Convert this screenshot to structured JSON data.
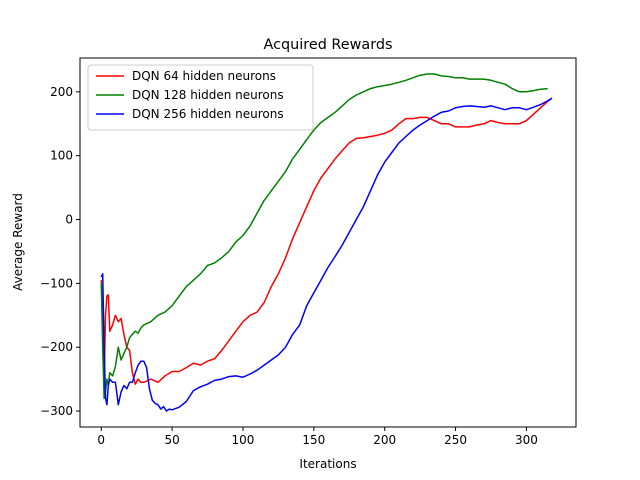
{
  "chart_data": {
    "type": "line",
    "title": "Acquired Rewards",
    "xlabel": "Iterations",
    "ylabel": "Average Reward",
    "xlim": [
      -15,
      335
    ],
    "ylim": [
      -325,
      253
    ],
    "xticks": [
      0,
      50,
      100,
      150,
      200,
      250,
      300
    ],
    "yticks": [
      -300,
      -200,
      -100,
      0,
      100,
      200
    ],
    "grid": false,
    "legend": "upper-left",
    "series": [
      {
        "name": "DQN 64 hidden neurons",
        "color": "#ff0000",
        "points": [
          [
            0,
            -95
          ],
          [
            1,
            -170
          ],
          [
            2,
            -260
          ],
          [
            3,
            -150
          ],
          [
            4,
            -120
          ],
          [
            5,
            -118
          ],
          [
            6,
            -175
          ],
          [
            8,
            -165
          ],
          [
            10,
            -150
          ],
          [
            12,
            -160
          ],
          [
            14,
            -155
          ],
          [
            16,
            -180
          ],
          [
            18,
            -200
          ],
          [
            20,
            -205
          ],
          [
            22,
            -240
          ],
          [
            24,
            -258
          ],
          [
            26,
            -250
          ],
          [
            28,
            -255
          ],
          [
            30,
            -255
          ],
          [
            35,
            -250
          ],
          [
            40,
            -255
          ],
          [
            45,
            -245
          ],
          [
            50,
            -238
          ],
          [
            55,
            -238
          ],
          [
            60,
            -232
          ],
          [
            65,
            -225
          ],
          [
            70,
            -228
          ],
          [
            75,
            -222
          ],
          [
            80,
            -218
          ],
          [
            85,
            -205
          ],
          [
            90,
            -190
          ],
          [
            95,
            -175
          ],
          [
            100,
            -160
          ],
          [
            105,
            -150
          ],
          [
            110,
            -145
          ],
          [
            115,
            -130
          ],
          [
            120,
            -105
          ],
          [
            125,
            -85
          ],
          [
            130,
            -60
          ],
          [
            135,
            -30
          ],
          [
            140,
            -5
          ],
          [
            145,
            20
          ],
          [
            150,
            45
          ],
          [
            155,
            65
          ],
          [
            160,
            80
          ],
          [
            165,
            95
          ],
          [
            170,
            108
          ],
          [
            175,
            120
          ],
          [
            180,
            127
          ],
          [
            185,
            128
          ],
          [
            190,
            130
          ],
          [
            195,
            132
          ],
          [
            200,
            135
          ],
          [
            205,
            140
          ],
          [
            210,
            150
          ],
          [
            215,
            158
          ],
          [
            220,
            158
          ],
          [
            225,
            160
          ],
          [
            230,
            160
          ],
          [
            235,
            155
          ],
          [
            240,
            150
          ],
          [
            245,
            150
          ],
          [
            250,
            145
          ],
          [
            255,
            145
          ],
          [
            260,
            145
          ],
          [
            265,
            148
          ],
          [
            270,
            150
          ],
          [
            275,
            155
          ],
          [
            280,
            152
          ],
          [
            285,
            150
          ],
          [
            290,
            150
          ],
          [
            295,
            150
          ],
          [
            300,
            155
          ],
          [
            305,
            165
          ],
          [
            310,
            175
          ],
          [
            315,
            185
          ],
          [
            318,
            190
          ]
        ]
      },
      {
        "name": "DQN 128 hidden neurons",
        "color": "#008000",
        "points": [
          [
            0,
            -100
          ],
          [
            1,
            -200
          ],
          [
            2,
            -280
          ],
          [
            3,
            -270
          ],
          [
            4,
            -250
          ],
          [
            5,
            -260
          ],
          [
            6,
            -240
          ],
          [
            8,
            -245
          ],
          [
            10,
            -230
          ],
          [
            12,
            -200
          ],
          [
            14,
            -220
          ],
          [
            16,
            -210
          ],
          [
            18,
            -200
          ],
          [
            20,
            -185
          ],
          [
            22,
            -180
          ],
          [
            24,
            -175
          ],
          [
            26,
            -178
          ],
          [
            28,
            -170
          ],
          [
            30,
            -165
          ],
          [
            35,
            -160
          ],
          [
            40,
            -150
          ],
          [
            45,
            -145
          ],
          [
            50,
            -135
          ],
          [
            55,
            -120
          ],
          [
            60,
            -105
          ],
          [
            65,
            -95
          ],
          [
            70,
            -85
          ],
          [
            75,
            -72
          ],
          [
            80,
            -68
          ],
          [
            85,
            -60
          ],
          [
            90,
            -50
          ],
          [
            95,
            -35
          ],
          [
            100,
            -25
          ],
          [
            105,
            -10
          ],
          [
            110,
            10
          ],
          [
            115,
            30
          ],
          [
            120,
            45
          ],
          [
            125,
            60
          ],
          [
            130,
            75
          ],
          [
            135,
            95
          ],
          [
            140,
            110
          ],
          [
            145,
            125
          ],
          [
            150,
            140
          ],
          [
            155,
            152
          ],
          [
            160,
            160
          ],
          [
            165,
            168
          ],
          [
            170,
            178
          ],
          [
            175,
            188
          ],
          [
            180,
            195
          ],
          [
            185,
            200
          ],
          [
            190,
            205
          ],
          [
            195,
            208
          ],
          [
            200,
            210
          ],
          [
            205,
            212
          ],
          [
            210,
            215
          ],
          [
            215,
            218
          ],
          [
            220,
            222
          ],
          [
            225,
            226
          ],
          [
            230,
            228
          ],
          [
            235,
            228
          ],
          [
            240,
            225
          ],
          [
            245,
            224
          ],
          [
            250,
            222
          ],
          [
            255,
            222
          ],
          [
            260,
            220
          ],
          [
            265,
            220
          ],
          [
            270,
            220
          ],
          [
            275,
            218
          ],
          [
            280,
            215
          ],
          [
            285,
            212
          ],
          [
            290,
            205
          ],
          [
            295,
            200
          ],
          [
            300,
            200
          ],
          [
            305,
            202
          ],
          [
            310,
            204
          ],
          [
            315,
            205
          ]
        ]
      },
      {
        "name": "DQN 256 hidden neurons",
        "color": "#0000ff",
        "points": [
          [
            0,
            -90
          ],
          [
            1,
            -85
          ],
          [
            2,
            -200
          ],
          [
            3,
            -280
          ],
          [
            4,
            -290
          ],
          [
            5,
            -260
          ],
          [
            6,
            -250
          ],
          [
            8,
            -255
          ],
          [
            10,
            -255
          ],
          [
            12,
            -290
          ],
          [
            14,
            -270
          ],
          [
            16,
            -260
          ],
          [
            18,
            -265
          ],
          [
            20,
            -255
          ],
          [
            22,
            -255
          ],
          [
            24,
            -240
          ],
          [
            26,
            -228
          ],
          [
            28,
            -222
          ],
          [
            30,
            -222
          ],
          [
            32,
            -232
          ],
          [
            34,
            -265
          ],
          [
            36,
            -283
          ],
          [
            38,
            -288
          ],
          [
            40,
            -290
          ],
          [
            42,
            -297
          ],
          [
            44,
            -293
          ],
          [
            46,
            -300
          ],
          [
            48,
            -297
          ],
          [
            50,
            -298
          ],
          [
            55,
            -294
          ],
          [
            60,
            -285
          ],
          [
            65,
            -268
          ],
          [
            70,
            -262
          ],
          [
            75,
            -258
          ],
          [
            80,
            -252
          ],
          [
            85,
            -250
          ],
          [
            90,
            -246
          ],
          [
            95,
            -245
          ],
          [
            100,
            -247
          ],
          [
            105,
            -242
          ],
          [
            110,
            -236
          ],
          [
            115,
            -228
          ],
          [
            120,
            -220
          ],
          [
            125,
            -212
          ],
          [
            130,
            -200
          ],
          [
            135,
            -180
          ],
          [
            140,
            -165
          ],
          [
            145,
            -135
          ],
          [
            150,
            -115
          ],
          [
            155,
            -95
          ],
          [
            160,
            -75
          ],
          [
            165,
            -58
          ],
          [
            170,
            -40
          ],
          [
            175,
            -20
          ],
          [
            180,
            0
          ],
          [
            185,
            20
          ],
          [
            190,
            45
          ],
          [
            195,
            70
          ],
          [
            200,
            90
          ],
          [
            205,
            105
          ],
          [
            210,
            120
          ],
          [
            215,
            130
          ],
          [
            220,
            140
          ],
          [
            225,
            148
          ],
          [
            230,
            155
          ],
          [
            235,
            162
          ],
          [
            240,
            168
          ],
          [
            245,
            170
          ],
          [
            250,
            175
          ],
          [
            255,
            177
          ],
          [
            260,
            178
          ],
          [
            265,
            177
          ],
          [
            270,
            176
          ],
          [
            275,
            178
          ],
          [
            280,
            175
          ],
          [
            285,
            172
          ],
          [
            290,
            175
          ],
          [
            295,
            175
          ],
          [
            300,
            172
          ],
          [
            305,
            176
          ],
          [
            310,
            180
          ],
          [
            315,
            186
          ],
          [
            318,
            190
          ]
        ]
      }
    ]
  }
}
